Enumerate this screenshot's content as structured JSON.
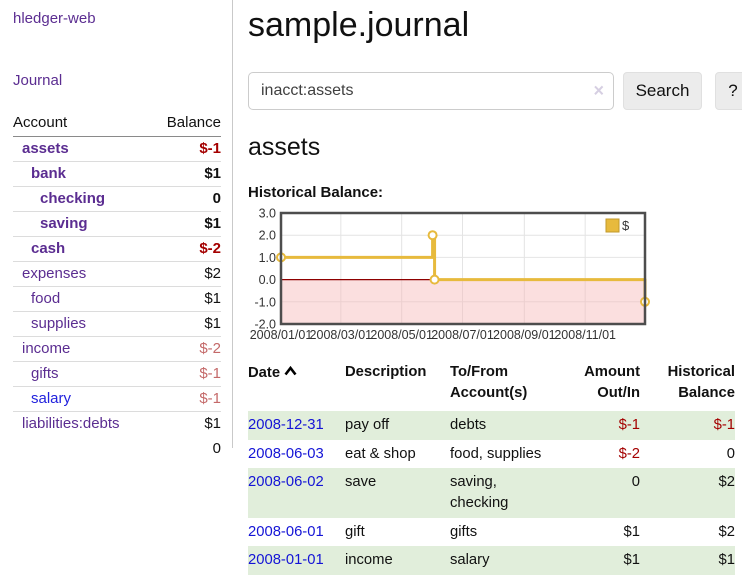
{
  "app": {
    "brand": "hledger-web",
    "nav_journal": "Journal"
  },
  "sidebar": {
    "accounts": {
      "headers": {
        "account": "Account",
        "balance": "Balance"
      },
      "rows": [
        {
          "account": "assets",
          "balance": "$-1",
          "depth": 1,
          "bold": true,
          "link": "purple"
        },
        {
          "account": "bank",
          "balance": "$1",
          "depth": 2,
          "bold": true,
          "link": "purple"
        },
        {
          "account": "checking",
          "balance": "0",
          "depth": 3,
          "bold": true,
          "link": "purple"
        },
        {
          "account": "saving",
          "balance": "$1",
          "depth": 3,
          "bold": true,
          "link": "purple"
        },
        {
          "account": "cash",
          "balance": "$-2",
          "depth": 2,
          "bold": true,
          "link": "purple"
        },
        {
          "account": "expenses",
          "balance": "$2",
          "depth": 1,
          "bold": false,
          "link": "purple"
        },
        {
          "account": "food",
          "balance": "$1",
          "depth": 2,
          "bold": false,
          "link": "purple"
        },
        {
          "account": "supplies",
          "balance": "$1",
          "depth": 2,
          "bold": false,
          "link": "purple"
        },
        {
          "account": "income",
          "balance": "$-2",
          "depth": 1,
          "bold": false,
          "link": "purple"
        },
        {
          "account": "gifts",
          "balance": "$-1",
          "depth": 2,
          "bold": false,
          "link": "purple"
        },
        {
          "account": "salary",
          "balance": "$-1",
          "depth": 2,
          "bold": false,
          "link": "blue"
        },
        {
          "account": "liabilities:debts",
          "balance": "$1",
          "depth": 1,
          "bold": false,
          "link": "purple"
        }
      ],
      "total": "0"
    }
  },
  "header": {
    "title": "sample.journal"
  },
  "search": {
    "value": "inacct:assets",
    "clear_icon": "×",
    "button_label": "Search",
    "help_label": "?"
  },
  "account_page": {
    "title": "assets",
    "chart_label": "Historical Balance:"
  },
  "chart_data": {
    "type": "line",
    "title": "Historical Balance",
    "x_range": [
      "2008-01-01",
      "2008-12-31"
    ],
    "ylim": [
      -2,
      3
    ],
    "series": [
      {
        "name": "$",
        "color": "#e7ba3d",
        "step": true,
        "points": [
          [
            "2008-01-01",
            1
          ],
          [
            "2008-06-01",
            2
          ],
          [
            "2008-06-03",
            0
          ],
          [
            "2008-12-31",
            -1
          ]
        ]
      }
    ],
    "yticks": [
      {
        "label": "3.0",
        "value": 3
      },
      {
        "label": "2.0",
        "value": 2
      },
      {
        "label": "1.0",
        "value": 1
      },
      {
        "label": "0.0",
        "value": 0
      },
      {
        "label": "-1.0",
        "value": -1
      },
      {
        "label": "-2.0",
        "value": -2
      }
    ],
    "xticks": [
      {
        "label": "2008/01/01",
        "date": "2008-01-01"
      },
      {
        "label": "2008/03/01",
        "date": "2008-03-01"
      },
      {
        "label": "2008/05/01",
        "date": "2008-05-01"
      },
      {
        "label": "2008/07/01",
        "date": "2008-07-01"
      },
      {
        "label": "2008/09/01",
        "date": "2008-09-01"
      },
      {
        "label": "2008/11/01",
        "date": "2008-11-01"
      }
    ],
    "legend": {
      "label": "$",
      "position": "top-right"
    },
    "colors": {
      "grid": "#e4e4e4",
      "border": "#4d4d4d",
      "negative_region": "#f6b9b9",
      "zero_line": "#8e0000",
      "legend_border": "#c2992b",
      "tick": "#333333"
    }
  },
  "transactions": {
    "headers": {
      "date": "Date",
      "description": "Description",
      "accounts": "To/From Account(s)",
      "amount": "Amount Out/In",
      "balance": "Historical Balance"
    },
    "rows": [
      {
        "date": "2008-12-31",
        "description": "pay off",
        "accounts": "debts",
        "amount": "$-1",
        "balance": "$-1"
      },
      {
        "date": "2008-06-03",
        "description": "eat & shop",
        "accounts": "food, supplies",
        "amount": "$-2",
        "balance": "0"
      },
      {
        "date": "2008-06-02",
        "description": "save",
        "accounts": "saving,\nchecking",
        "amount": "0",
        "balance": "$2"
      },
      {
        "date": "2008-06-01",
        "description": "gift",
        "accounts": "gifts",
        "amount": "$1",
        "balance": "$2"
      },
      {
        "date": "2008-01-01",
        "description": "income",
        "accounts": "salary",
        "amount": "$1",
        "balance": "$1"
      }
    ]
  },
  "colors": {
    "link_purple": "#5b2d91",
    "link_blue": "#1414d6",
    "negative_strong": "#a40000",
    "negative_soft": "#c46969",
    "row_stripe_green": "#e1eedb"
  }
}
